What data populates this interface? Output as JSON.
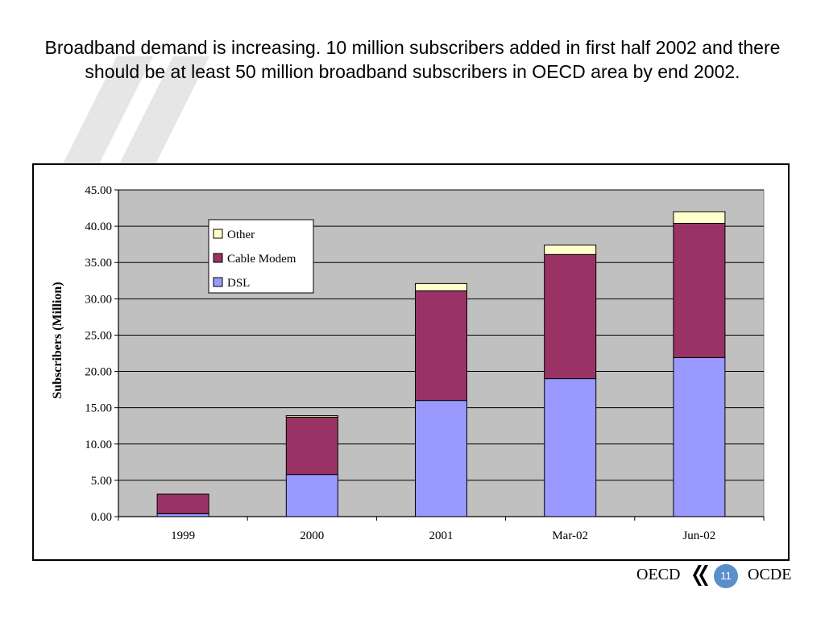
{
  "slide": {
    "title": "Broadband demand is increasing. 10 million subscribers added in first half 2002 and there should be at least 50 million broadband subscribers in OECD area by end 2002.",
    "page_number": "11"
  },
  "footer": {
    "left_label": "OECD",
    "right_label": "OCDE",
    "logo_icon": "oecd-quotes-logo-icon"
  },
  "chart_data": {
    "type": "bar",
    "stacked": true,
    "categories": [
      "1999",
      "2000",
      "2001",
      "Mar-02",
      "Jun-02"
    ],
    "series": [
      {
        "name": "DSL",
        "color": "#9999ff",
        "values": [
          0.4,
          5.8,
          16.0,
          19.0,
          21.9
        ]
      },
      {
        "name": "Cable Modem",
        "color": "#993366",
        "values": [
          2.7,
          7.9,
          15.1,
          17.1,
          18.5
        ]
      },
      {
        "name": "Other",
        "color": "#ffffcc",
        "values": [
          0.0,
          0.2,
          1.0,
          1.3,
          1.6
        ]
      }
    ],
    "xlabel": "",
    "ylabel": "Subscribers (Million)",
    "ylim": [
      0,
      45
    ],
    "yticks": [
      "0.00",
      "5.00",
      "10.00",
      "15.00",
      "20.00",
      "25.00",
      "30.00",
      "35.00",
      "40.00",
      "45.00"
    ],
    "grid": true,
    "plot_background": "#c0c0c0",
    "legend": {
      "position": "top-left-inside",
      "order": [
        "Other",
        "Cable Modem",
        "DSL"
      ]
    }
  }
}
